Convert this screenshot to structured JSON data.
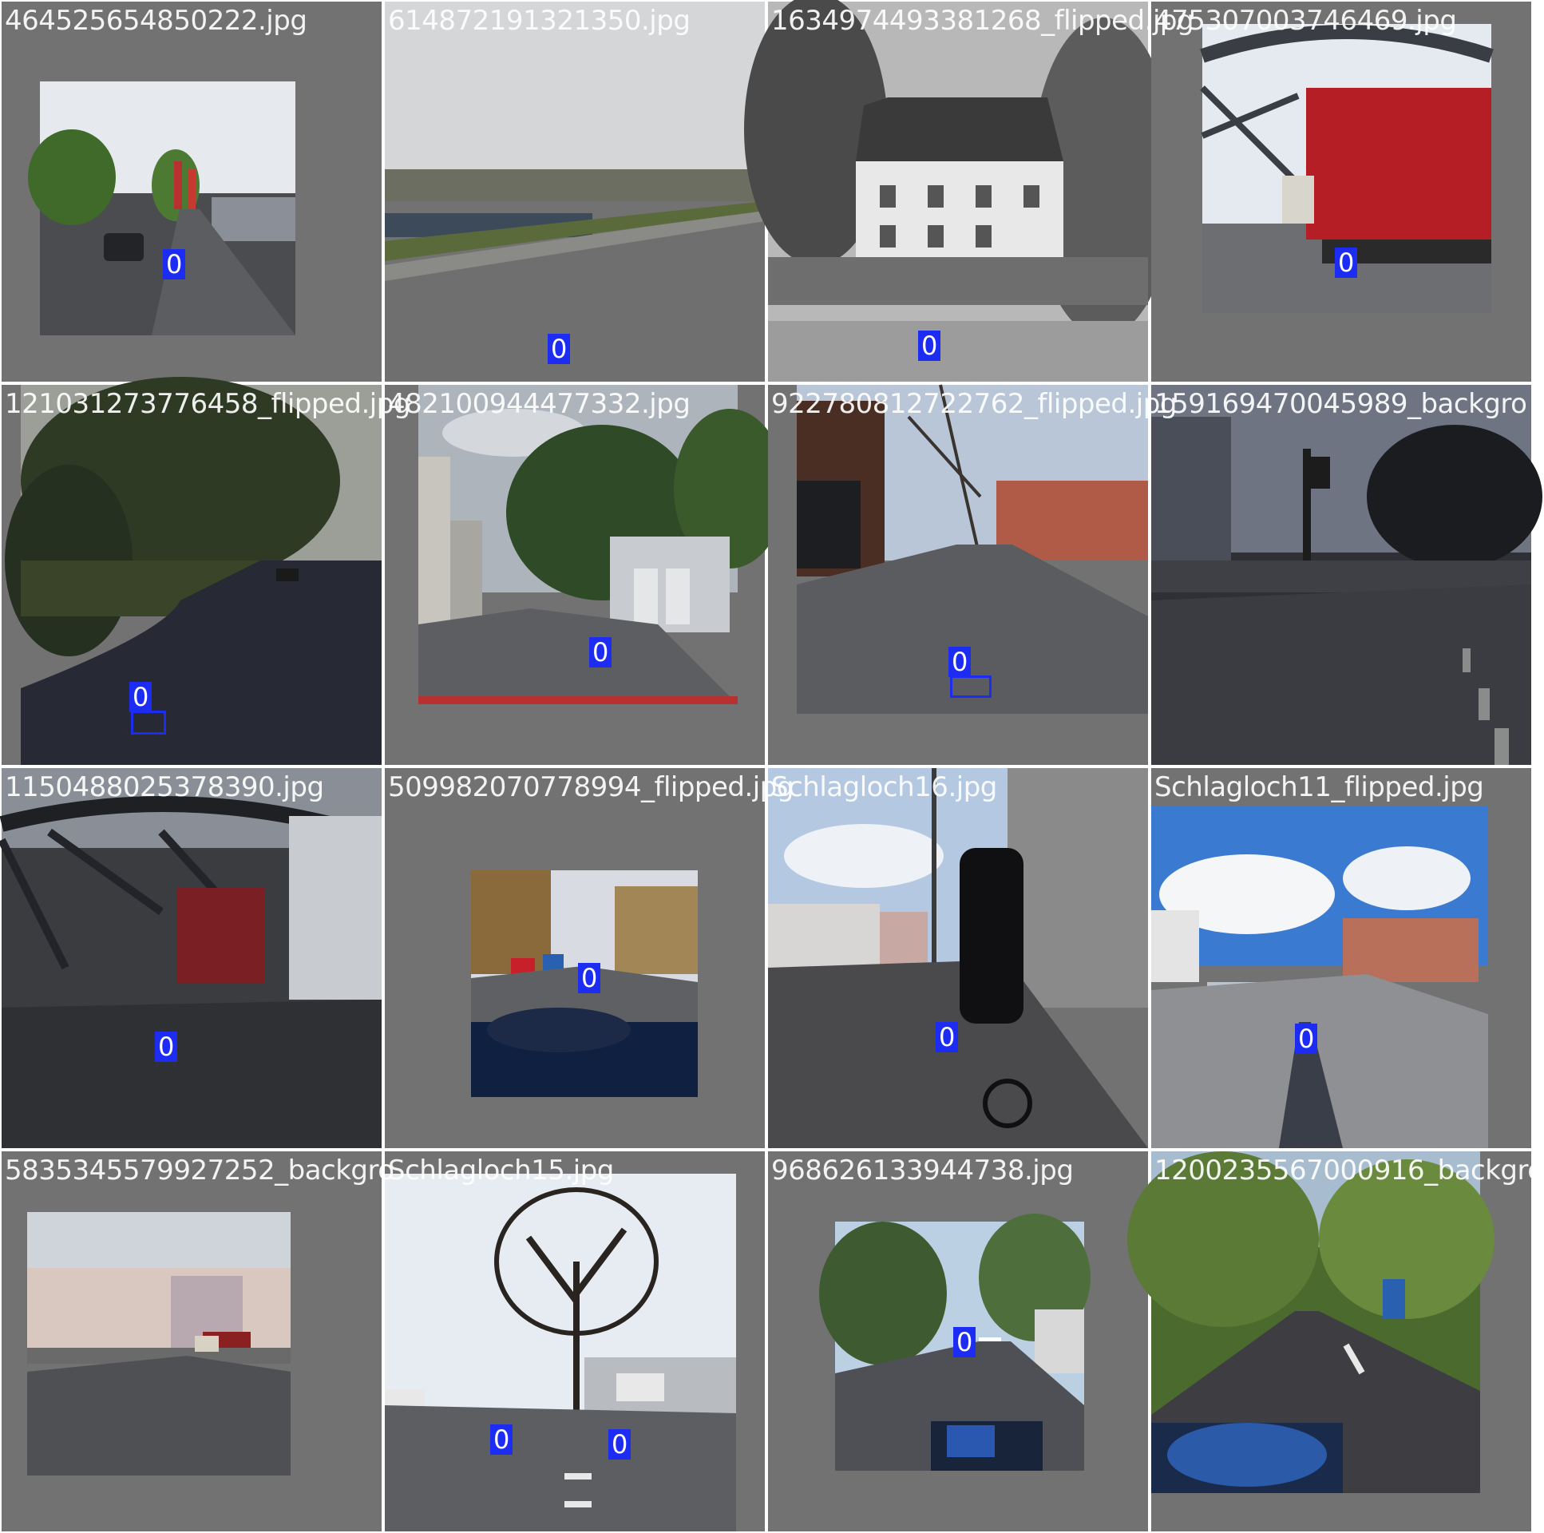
{
  "tiles": [
    {
      "filename": "464525654850222.jpg",
      "labels": [
        "0"
      ],
      "scene": "street-car"
    },
    {
      "filename": "614872191321350.jpg",
      "labels": [
        "0"
      ],
      "scene": "riverside-road"
    },
    {
      "filename": "1634974493381268_flipped.jpg",
      "labels": [
        "0"
      ],
      "scene": "bw-building"
    },
    {
      "filename": "475307003746469.jpg",
      "labels": [
        "0"
      ],
      "scene": "bridge-truck"
    },
    {
      "filename": "121031273776458_flipped.jpg",
      "labels": [
        "0"
      ],
      "scene": "dark-road"
    },
    {
      "filename": "482100944477332.jpg",
      "labels": [
        "0"
      ],
      "scene": "garage-road"
    },
    {
      "filename": "922780812722762_flipped.jpg",
      "labels": [
        "0"
      ],
      "scene": "residential-street"
    },
    {
      "filename": "159169470045989_backgro",
      "labels": [],
      "scene": "intersection"
    },
    {
      "filename": "1150488025378390.jpg",
      "labels": [
        "0"
      ],
      "scene": "bridge-dark"
    },
    {
      "filename": "509982070778994_flipped.jpg",
      "labels": [
        "0"
      ],
      "scene": "dashboard-road"
    },
    {
      "filename": "Schlagloch16.jpg",
      "labels": [
        "0"
      ],
      "scene": "cyclist"
    },
    {
      "filename": "Schlagloch11_flipped.jpg",
      "labels": [
        "0"
      ],
      "scene": "sunny-road"
    },
    {
      "filename": "5835345579927252_backgro",
      "labels": [],
      "scene": "city-square"
    },
    {
      "filename": "Schlagloch15.jpg",
      "labels": [
        "0",
        "0"
      ],
      "scene": "tree-junction"
    },
    {
      "filename": "968626133944738.jpg",
      "labels": [
        "0"
      ],
      "scene": "cargo-bike-road"
    },
    {
      "filename": "1200235567000916_backgro",
      "labels": [],
      "scene": "green-road"
    }
  ],
  "colors": {
    "label_fill": "#1c2cf2",
    "padding": "#727272"
  }
}
